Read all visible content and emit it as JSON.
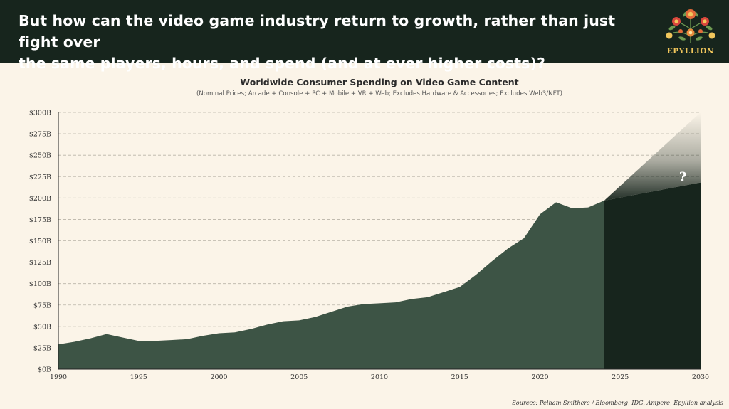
{
  "header": {
    "headline_line1": "But how can the video game industry return to growth, rather than just fight over",
    "headline_line2": "the same players, hours, and spend (and at ever higher costs)?",
    "logo_text": "EPYLLION",
    "background_color": "#17251d"
  },
  "footer": {
    "sources": "Sources: Pelham Smithers / Bloomberg, IDG, Ampere, Epyllion analysis"
  },
  "colors": {
    "historical_fill": "#3d5445",
    "forecast_fill": "#17251d",
    "grid": "#b9b3a7",
    "background": "#fbf4e8"
  },
  "chart_data": {
    "type": "area",
    "title": "Worldwide Consumer Spending on Video Game Content",
    "subtitle": "(Nominal Prices; Arcade + Console + PC + Mobile + VR + Web; Excludes Hardware & Accessories; Excludes Web3/NFT)",
    "xlabel": "",
    "ylabel": "",
    "xlim": [
      1990,
      2030
    ],
    "ylim": [
      0,
      300
    ],
    "x_ticks": [
      "1990",
      "1995",
      "2000",
      "2005",
      "2010",
      "2015",
      "2020",
      "2025",
      "2030"
    ],
    "y_ticks": [
      "$0B",
      "$25B",
      "$50B",
      "$75B",
      "$100B",
      "$125B",
      "$150B",
      "$175B",
      "$200B",
      "$225B",
      "$250B",
      "$275B",
      "$300B"
    ],
    "grid": "horizontal dashed",
    "series": [
      {
        "x": [
          1990,
          1991,
          1992,
          1993,
          1994,
          1995,
          1996,
          1997,
          1998,
          1999,
          2000,
          2001,
          2002,
          2003,
          2004,
          2005,
          2006,
          2007,
          2008,
          2009,
          2010,
          2011,
          2012,
          2013,
          2014,
          2015,
          2016,
          2017,
          2018,
          2019,
          2020,
          2021,
          2022,
          2023,
          2024
        ],
        "values": [
          29,
          32,
          36,
          41,
          37,
          33,
          33,
          34,
          35,
          39,
          42,
          43,
          47,
          52,
          56,
          57,
          61,
          67,
          73,
          76,
          77,
          78,
          82,
          84,
          90,
          96,
          110,
          126,
          141,
          153,
          181,
          195,
          188,
          189,
          197
        ]
      }
    ],
    "forecast": {
      "x": [
        2024,
        2030
      ],
      "base_values": [
        197,
        218
      ],
      "upper_values": [
        197,
        300
      ],
      "label": "?"
    }
  }
}
